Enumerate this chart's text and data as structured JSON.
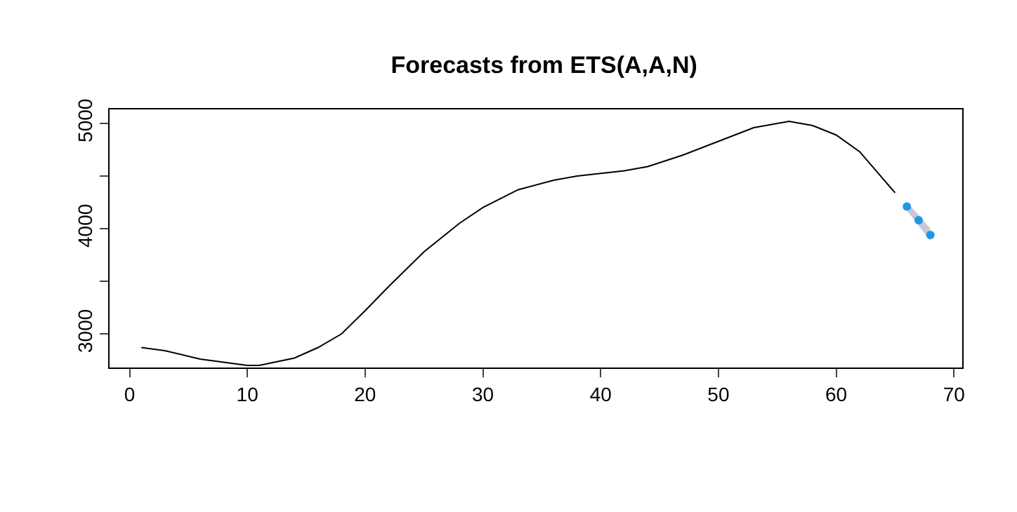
{
  "chart_data": {
    "type": "line",
    "title": "Forecasts from ETS(A,A,N)",
    "series": [
      {
        "color": "#000000",
        "marker": "none",
        "x": [
          1,
          3,
          6,
          10,
          11,
          14,
          16,
          18,
          20,
          22,
          25,
          28,
          30,
          33,
          36,
          38,
          42,
          44,
          47,
          50,
          53,
          56,
          58,
          60,
          62,
          65
        ],
        "values": [
          2870,
          2840,
          2760,
          2700,
          2700,
          2770,
          2870,
          3000,
          3220,
          3450,
          3780,
          4050,
          4200,
          4370,
          4460,
          4500,
          4550,
          4590,
          4700,
          4830,
          4960,
          5020,
          4980,
          4890,
          4730,
          4340
        ]
      },
      {
        "type": "scatter",
        "color": "#2297e6",
        "marker": "circle",
        "x": [
          66,
          67,
          68
        ],
        "values": [
          4210,
          4080,
          3940
        ],
        "lower": [
          4170,
          4030,
          3880
        ],
        "upper": [
          4250,
          4130,
          4000
        ]
      }
    ],
    "xlim": [
      -1.7,
      70.7
    ],
    "ylim": [
      2680,
      5133
    ],
    "xticks": [
      0,
      10,
      20,
      30,
      40,
      50,
      60,
      70
    ],
    "yticks": [
      3000,
      {
        "value": 3500,
        "label": null
      },
      4000,
      {
        "value": 4500,
        "label": null
      },
      5000
    ]
  }
}
